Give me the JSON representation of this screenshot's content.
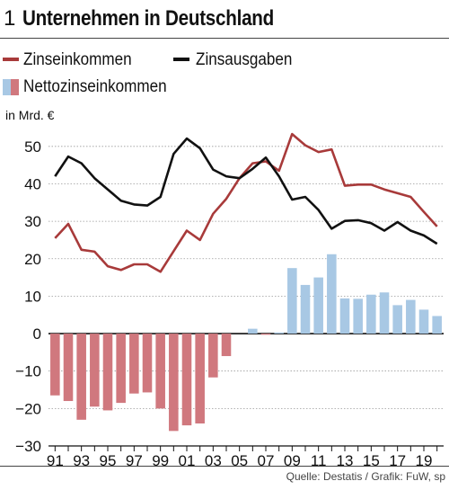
{
  "header": {
    "number": "1",
    "title": "Unternehmen in Deutschland"
  },
  "legend": [
    {
      "id": "zinseinkommen",
      "label": "Zinseinkommen",
      "color": "#a83a3a",
      "kind": "line"
    },
    {
      "id": "zinsausgaben",
      "label": "Zinsausgaben",
      "color": "#111111",
      "kind": "line"
    },
    {
      "id": "netto",
      "label": "Nettozinseinkommen",
      "kind": "bar"
    }
  ],
  "source": "Quelle: Destatis / Grafik: FuW, sp",
  "chart_data": {
    "type": "line",
    "title": "Unternehmen in Deutschland",
    "ylabel": "in Mrd. €",
    "ylim": [
      -30,
      55
    ],
    "yticks": [
      -30,
      -20,
      -10,
      0,
      10,
      20,
      30,
      40,
      50
    ],
    "years": [
      1991,
      1992,
      1993,
      1994,
      1995,
      1996,
      1997,
      1998,
      1999,
      2000,
      2001,
      2002,
      2003,
      2004,
      2005,
      2006,
      2007,
      2008,
      2009,
      2010,
      2011,
      2012,
      2013,
      2014,
      2015,
      2016,
      2017,
      2018,
      2019,
      2020
    ],
    "xtick_labels": [
      "91",
      "93",
      "95",
      "97",
      "99",
      "01",
      "03",
      "05",
      "07",
      "09",
      "11",
      "13",
      "15",
      "17",
      "19"
    ],
    "xtick_years": [
      1991,
      1993,
      1995,
      1997,
      1999,
      2001,
      2003,
      2005,
      2007,
      2009,
      2011,
      2013,
      2015,
      2017,
      2019
    ],
    "negative_color": "#d0787e",
    "positive_color": "#a8c8e4",
    "grid": "horizontal",
    "series": [
      {
        "name": "Zinseinkommen",
        "kind": "line",
        "color": "#a83a3a",
        "values": [
          25.5,
          29.3,
          22.4,
          21.9,
          18,
          17,
          18.5,
          18.5,
          16.5,
          22,
          27.5,
          25,
          32,
          36,
          41.5,
          45.5,
          46,
          43.5,
          53.3,
          50.3,
          48.5,
          49.2,
          39.5,
          39.8,
          39.8,
          38.5,
          37.5,
          36.5,
          32.5,
          28.6
        ]
      },
      {
        "name": "Zinsausgaben",
        "kind": "line",
        "color": "#111111",
        "values": [
          42,
          47.3,
          45.5,
          41.5,
          38.5,
          35.5,
          34.5,
          34.2,
          36.5,
          48,
          52.1,
          49.5,
          43.8,
          42,
          41.5,
          44,
          47,
          42,
          35.8,
          36.5,
          33,
          28,
          30.1,
          30.3,
          29.5,
          27.5,
          29.8,
          27.5,
          26.2,
          24
        ]
      },
      {
        "name": "Nettozinseinkommen",
        "kind": "bar",
        "values": [
          -16.5,
          -18,
          -23,
          -19.5,
          -20.5,
          -18.5,
          -16,
          -15.7,
          -20,
          -26,
          -24.5,
          -24,
          -11.7,
          -6,
          0,
          1.3,
          -0.3,
          0.3,
          17.5,
          13,
          15,
          21.2,
          9.4,
          9.3,
          10.4,
          11,
          7.6,
          9,
          6.4,
          4.7
        ]
      }
    ]
  }
}
